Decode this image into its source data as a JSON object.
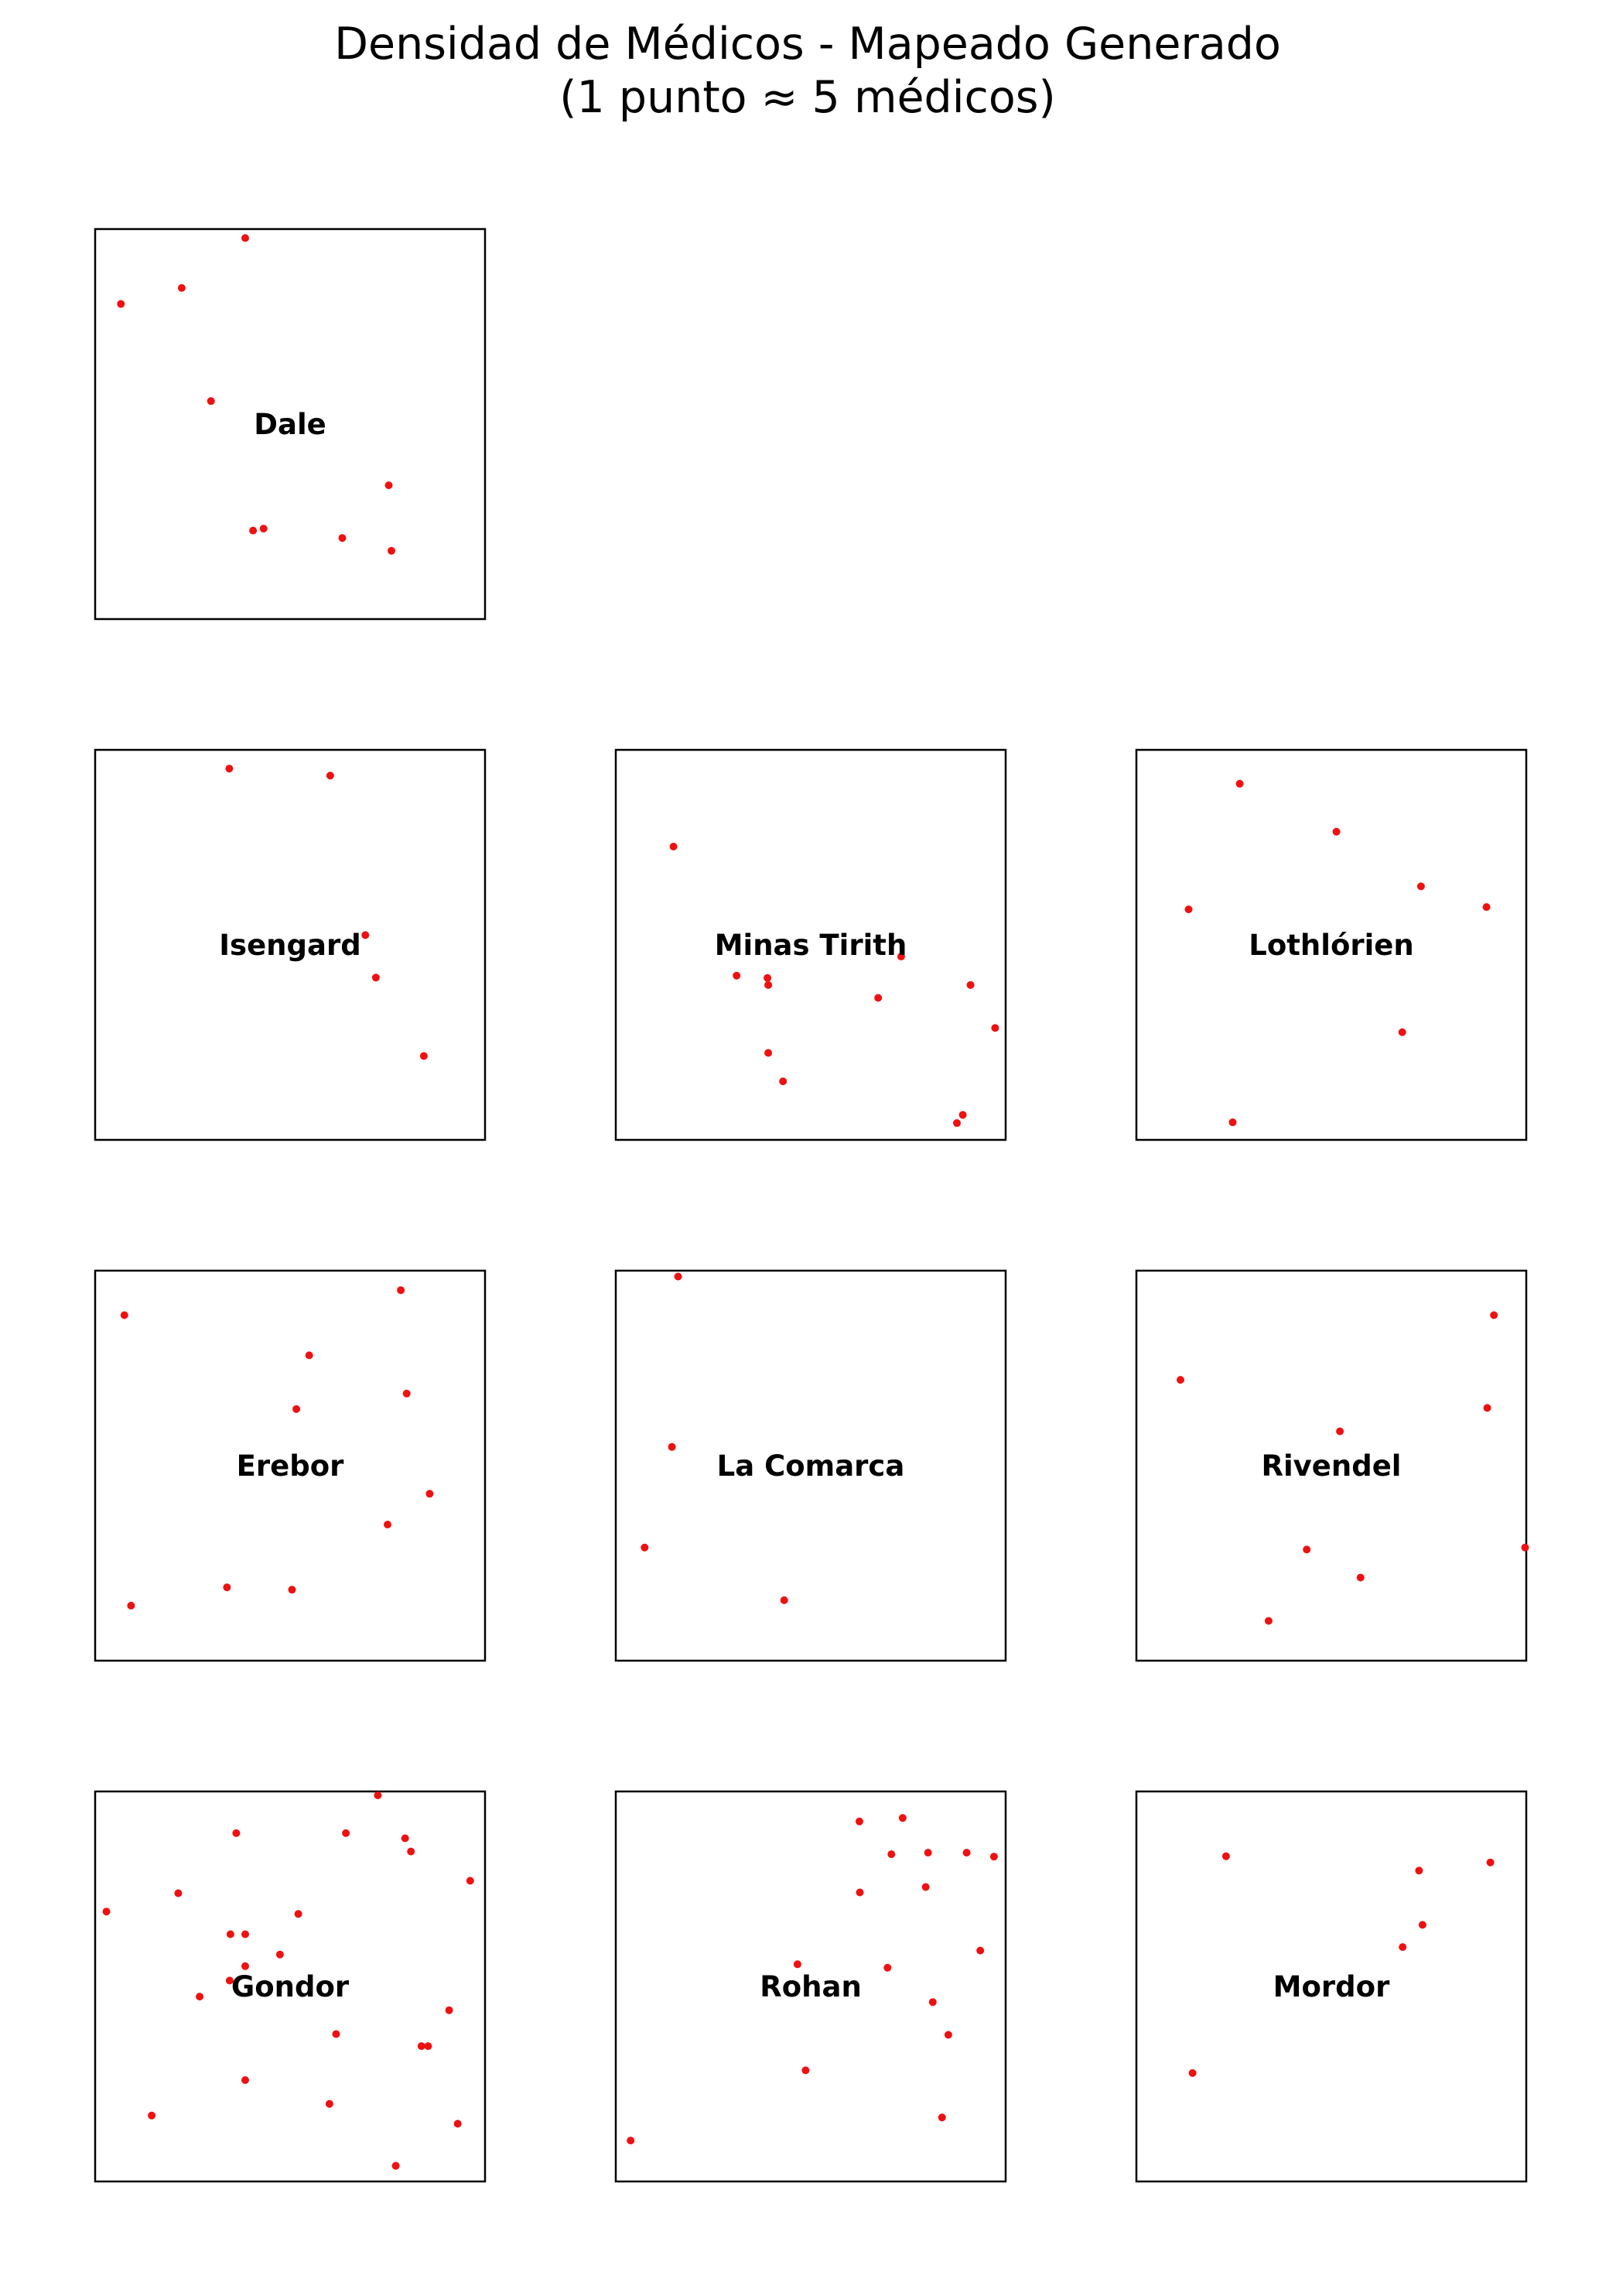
{
  "title": {
    "line1": "Densidad de Médicos - Mapeado Generado",
    "line2": "(1 punto ≈ 5 médicos)"
  },
  "colors": {
    "dot": "#ee1111",
    "frame": "#000000",
    "background": "#ffffff"
  },
  "chart_data": {
    "type": "scatter",
    "layout": "small-multiples 4x3 grid",
    "xlim": [
      0,
      1
    ],
    "ylim": [
      0,
      1
    ],
    "axes_visible": false,
    "grid": false,
    "panels": [
      {
        "name": "Dale",
        "row": 0,
        "col": 0,
        "points": [
          [
            0.385,
            0.977
          ],
          [
            0.066,
            0.808
          ],
          [
            0.222,
            0.849
          ],
          [
            0.297,
            0.559
          ],
          [
            0.753,
            0.343
          ],
          [
            0.405,
            0.227
          ],
          [
            0.432,
            0.232
          ],
          [
            0.634,
            0.208
          ],
          [
            0.76,
            0.175
          ]
        ]
      },
      {
        "name": "Isengard",
        "row": 1,
        "col": 0,
        "points": [
          [
            0.344,
            0.952
          ],
          [
            0.603,
            0.934
          ],
          [
            0.693,
            0.525
          ],
          [
            0.72,
            0.416
          ],
          [
            0.843,
            0.215
          ]
        ]
      },
      {
        "name": "Minas Tirith",
        "row": 1,
        "col": 1,
        "points": [
          [
            0.148,
            0.752
          ],
          [
            0.31,
            0.421
          ],
          [
            0.389,
            0.415
          ],
          [
            0.391,
            0.397
          ],
          [
            0.732,
            0.47
          ],
          [
            0.673,
            0.364
          ],
          [
            0.91,
            0.397
          ],
          [
            0.973,
            0.287
          ],
          [
            0.391,
            0.223
          ],
          [
            0.429,
            0.15
          ],
          [
            0.89,
            0.064
          ],
          [
            0.875,
            0.043
          ]
        ]
      },
      {
        "name": "Lothlórien",
        "row": 1,
        "col": 2,
        "points": [
          [
            0.265,
            0.913
          ],
          [
            0.513,
            0.79
          ],
          [
            0.73,
            0.65
          ],
          [
            0.134,
            0.591
          ],
          [
            0.898,
            0.597
          ],
          [
            0.682,
            0.276
          ],
          [
            0.247,
            0.045
          ]
        ]
      },
      {
        "name": "Erebor",
        "row": 2,
        "col": 0,
        "points": [
          [
            0.075,
            0.886
          ],
          [
            0.784,
            0.95
          ],
          [
            0.549,
            0.783
          ],
          [
            0.799,
            0.685
          ],
          [
            0.516,
            0.645
          ],
          [
            0.858,
            0.428
          ],
          [
            0.75,
            0.349
          ],
          [
            0.338,
            0.188
          ],
          [
            0.505,
            0.182
          ],
          [
            0.092,
            0.141
          ]
        ]
      },
      {
        "name": "La Comarca",
        "row": 2,
        "col": 1,
        "points": [
          [
            0.16,
            0.985
          ],
          [
            0.144,
            0.548
          ],
          [
            0.074,
            0.29
          ],
          [
            0.432,
            0.155
          ]
        ]
      },
      {
        "name": "Rivendel",
        "row": 2,
        "col": 2,
        "points": [
          [
            0.917,
            0.886
          ],
          [
            0.113,
            0.72
          ],
          [
            0.9,
            0.648
          ],
          [
            0.522,
            0.588
          ],
          [
            0.437,
            0.285
          ],
          [
            0.997,
            0.29
          ],
          [
            0.575,
            0.213
          ],
          [
            0.339,
            0.102
          ]
        ]
      },
      {
        "name": "Gondor",
        "row": 3,
        "col": 0,
        "points": [
          [
            0.725,
            0.99
          ],
          [
            0.362,
            0.893
          ],
          [
            0.643,
            0.893
          ],
          [
            0.795,
            0.88
          ],
          [
            0.81,
            0.846
          ],
          [
            0.962,
            0.771
          ],
          [
            0.029,
            0.692
          ],
          [
            0.213,
            0.739
          ],
          [
            0.521,
            0.686
          ],
          [
            0.347,
            0.634
          ],
          [
            0.385,
            0.634
          ],
          [
            0.474,
            0.582
          ],
          [
            0.385,
            0.552
          ],
          [
            0.345,
            0.515
          ],
          [
            0.268,
            0.474
          ],
          [
            0.908,
            0.439
          ],
          [
            0.618,
            0.378
          ],
          [
            0.837,
            0.347
          ],
          [
            0.854,
            0.347
          ],
          [
            0.385,
            0.26
          ],
          [
            0.601,
            0.199
          ],
          [
            0.145,
            0.169
          ],
          [
            0.93,
            0.148
          ],
          [
            0.771,
            0.04
          ]
        ]
      },
      {
        "name": "Rohan",
        "row": 3,
        "col": 1,
        "points": [
          [
            0.625,
            0.923
          ],
          [
            0.736,
            0.932
          ],
          [
            0.707,
            0.839
          ],
          [
            0.801,
            0.843
          ],
          [
            0.9,
            0.843
          ],
          [
            0.97,
            0.833
          ],
          [
            0.626,
            0.741
          ],
          [
            0.795,
            0.755
          ],
          [
            0.935,
            0.592
          ],
          [
            0.466,
            0.557
          ],
          [
            0.697,
            0.548
          ],
          [
            0.813,
            0.46
          ],
          [
            0.853,
            0.376
          ],
          [
            0.487,
            0.285
          ],
          [
            0.837,
            0.164
          ],
          [
            0.038,
            0.105
          ]
        ]
      },
      {
        "name": "Mordor",
        "row": 3,
        "col": 2,
        "points": [
          [
            0.23,
            0.834
          ],
          [
            0.908,
            0.818
          ],
          [
            0.725,
            0.797
          ],
          [
            0.734,
            0.658
          ],
          [
            0.683,
            0.601
          ],
          [
            0.144,
            0.278
          ]
        ]
      }
    ]
  }
}
